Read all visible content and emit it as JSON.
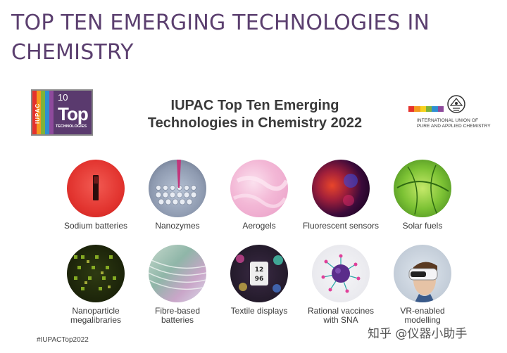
{
  "slide": {
    "title": "TOP TEN EMERGING TECHNOLOGIES IN CHEMISTRY",
    "heading_line1": "IUPAC Top Ten Emerging",
    "heading_line2": "Technologies in Chemistry 2022",
    "hashtag": "#IUPACTop2022",
    "watermark": "知乎 @仪器小助手"
  },
  "badge": {
    "iupac": "IUPAC",
    "number": "10",
    "top": "Top",
    "technologies": "TECHNOLOGIES",
    "stripe_colors": [
      "#e5322d",
      "#f39a1e",
      "#7fb23a",
      "#2e8fd1",
      "#8e4a9c"
    ]
  },
  "iupac_logo": {
    "line1": "INTERNATIONAL UNION OF",
    "line2": "PURE AND APPLIED CHEMISTRY",
    "bar_colors": [
      "#e5322d",
      "#f39a1e",
      "#f7d11c",
      "#7fb23a",
      "#2e8fd1",
      "#8e4a9c"
    ]
  },
  "technologies": [
    {
      "line1": "Sodium batteries",
      "line2": "",
      "icon": "sodium-battery-image"
    },
    {
      "line1": "Nanozymes",
      "line2": "",
      "icon": "nanozyme-image"
    },
    {
      "line1": "Aerogels",
      "line2": "",
      "icon": "aerogel-image"
    },
    {
      "line1": "Fluorescent sensors",
      "line2": "",
      "icon": "fluorescent-sensor-image"
    },
    {
      "line1": "Solar fuels",
      "line2": "",
      "icon": "solar-fuel-image"
    },
    {
      "line1": "Nanoparticle",
      "line2": "megalibraries",
      "icon": "nanoparticle-image"
    },
    {
      "line1": "Fibre-based",
      "line2": "batteries",
      "icon": "fibre-battery-image"
    },
    {
      "line1": "Textile displays",
      "line2": "",
      "icon": "textile-display-image"
    },
    {
      "line1": "Rational vaccines",
      "line2": "with SNA",
      "icon": "vaccine-image"
    },
    {
      "line1": "VR-enabled",
      "line2": "modelling",
      "icon": "vr-headset-image"
    }
  ]
}
